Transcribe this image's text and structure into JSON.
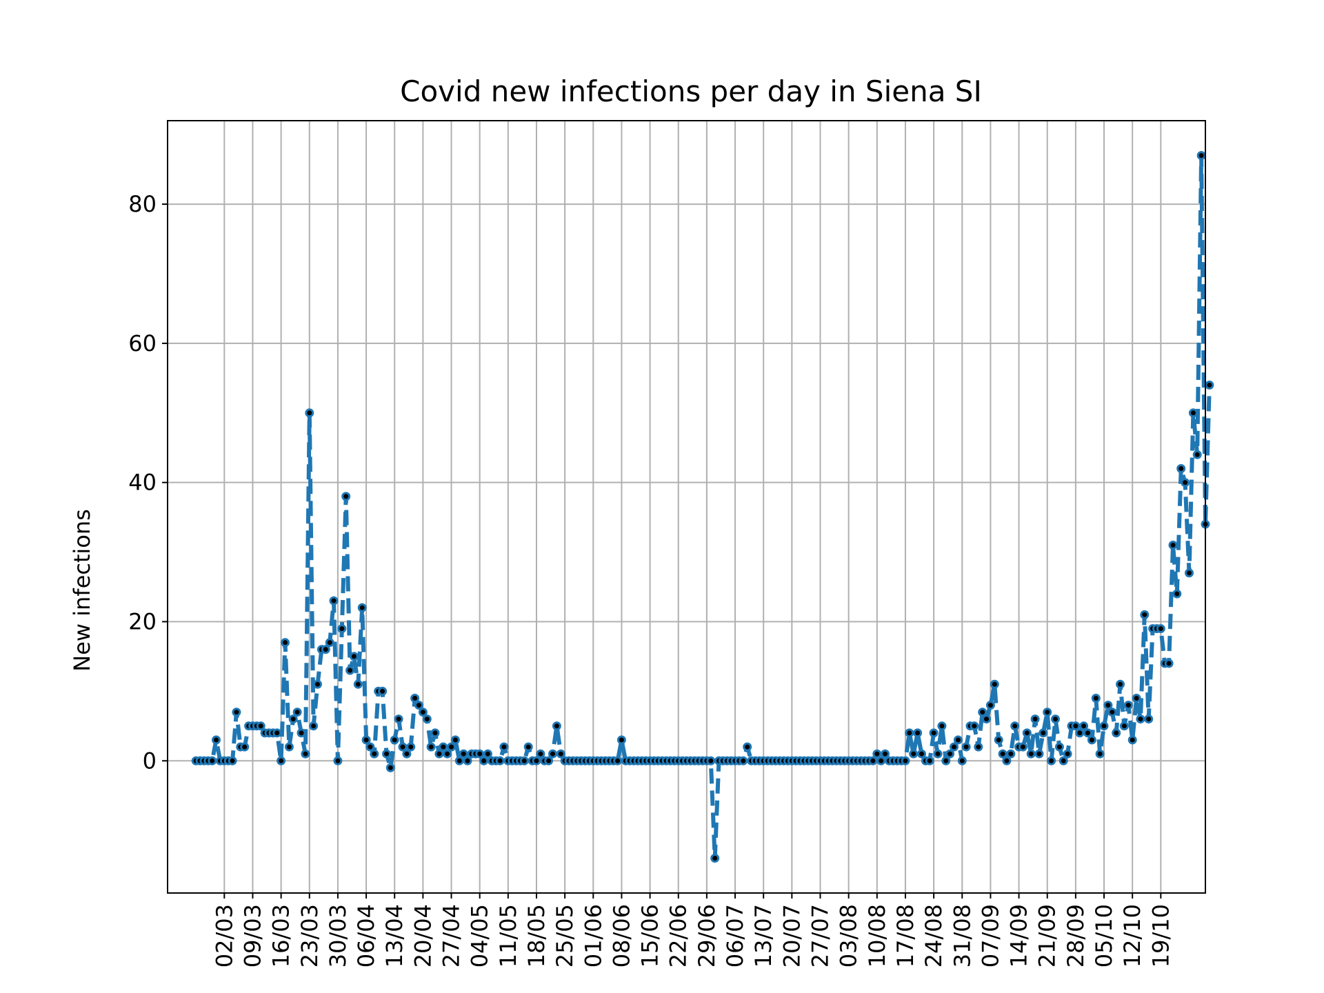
{
  "chart_data": {
    "type": "line",
    "title": "Covid new infections per day in Siena SI",
    "xlabel": "",
    "ylabel": "New infections",
    "grid": true,
    "x_start": "24/02",
    "x_end": "23/10",
    "xlim": [
      "17/02",
      "30/10"
    ],
    "ylim": [
      -19,
      92
    ],
    "y_ticks": [
      0,
      20,
      40,
      60,
      80
    ],
    "x_ticks": [
      "02/03",
      "09/03",
      "16/03",
      "23/03",
      "30/03",
      "06/04",
      "13/04",
      "20/04",
      "27/04",
      "04/05",
      "11/05",
      "18/05",
      "25/05",
      "01/06",
      "08/06",
      "15/06",
      "22/06",
      "29/06",
      "06/07",
      "13/07",
      "20/07",
      "27/07",
      "03/08",
      "10/08",
      "17/08",
      "24/08",
      "31/08",
      "07/09",
      "14/09",
      "21/09",
      "28/09",
      "05/10",
      "12/10",
      "19/10"
    ],
    "series": [
      {
        "values": [
          0,
          0,
          0,
          0,
          0,
          3,
          0,
          0,
          0,
          0,
          7,
          2,
          2,
          5,
          5,
          5,
          5,
          4,
          4,
          4,
          4,
          0,
          17,
          2,
          6,
          7,
          4,
          1,
          50,
          5,
          11,
          16,
          16,
          17,
          23,
          0,
          19,
          38,
          13,
          15,
          11,
          22,
          3,
          2,
          1,
          10,
          10,
          1,
          -1,
          3,
          6,
          2,
          1,
          2,
          9,
          8,
          7,
          6,
          2,
          4,
          1,
          2,
          1,
          2,
          3,
          0,
          1,
          0,
          1,
          1,
          1,
          0,
          1,
          0,
          0,
          0,
          2,
          0,
          0,
          0,
          0,
          0,
          2,
          0,
          0,
          1,
          0,
          0,
          1,
          5,
          1,
          0,
          0,
          0,
          0,
          0,
          0,
          0,
          0,
          0,
          0,
          0,
          0,
          0,
          0,
          3,
          0,
          0,
          0,
          0,
          0,
          0,
          0,
          0,
          0,
          0,
          0,
          0,
          0,
          0,
          0,
          0,
          0,
          0,
          0,
          0,
          0,
          0,
          -14,
          0,
          0,
          0,
          0,
          0,
          0,
          0,
          2,
          0,
          0,
          0,
          0,
          0,
          0,
          0,
          0,
          0,
          0,
          0,
          0,
          0,
          0,
          0,
          0,
          0,
          0,
          0,
          0,
          0,
          0,
          0,
          0,
          0,
          0,
          0,
          0,
          0,
          0,
          0,
          1,
          0,
          1,
          0,
          0,
          0,
          0,
          0,
          4,
          1,
          4,
          1,
          0,
          0,
          4,
          1,
          5,
          0,
          1,
          2,
          3,
          0,
          2,
          5,
          5,
          2,
          7,
          6,
          8,
          11,
          3,
          1,
          0,
          1,
          5,
          2,
          2,
          4,
          1,
          6,
          1,
          4,
          7,
          0,
          6,
          2,
          0,
          1,
          5,
          5,
          4,
          5,
          4,
          3,
          9,
          1,
          5,
          8,
          7,
          4,
          11,
          5,
          8,
          3,
          9,
          6,
          21,
          6,
          19,
          19,
          19,
          14,
          14,
          31,
          24,
          42,
          40,
          27,
          50,
          44,
          87,
          34,
          54
        ]
      }
    ]
  }
}
